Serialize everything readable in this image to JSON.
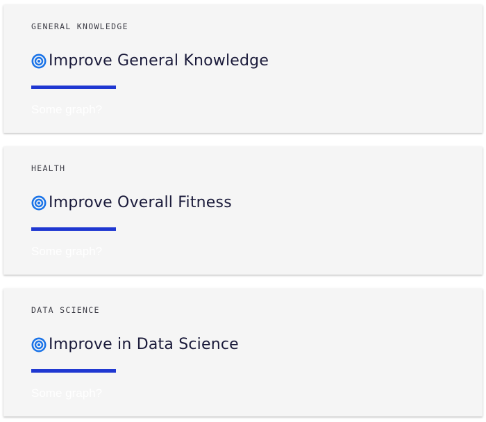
{
  "goals": [
    {
      "category": "GENERAL KNOWLEDGE",
      "icon": "target-icon",
      "title": "Improve General Knowledge",
      "graph_placeholder": "Some graph?"
    },
    {
      "category": "HEALTH",
      "icon": "target-icon",
      "title": "Improve Overall Fitness",
      "graph_placeholder": "Some graph?"
    },
    {
      "category": "DATA SCIENCE",
      "icon": "target-icon",
      "title": "Improve in Data Science",
      "graph_placeholder": "Some graph?"
    }
  ],
  "colors": {
    "card_background": "#f5f5f5",
    "accent_bar": "#1f37d1",
    "icon": "#1a73e8",
    "title_text": "#1a1a3a",
    "category_text": "#3d3d46"
  }
}
